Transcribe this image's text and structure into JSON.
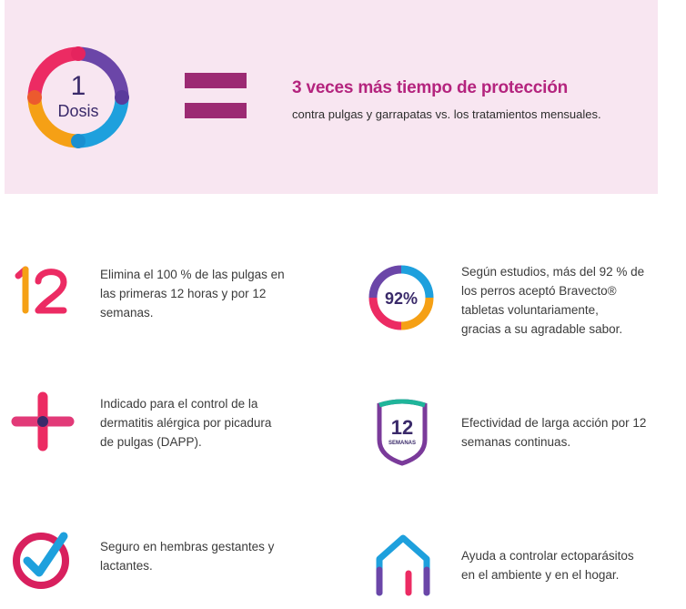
{
  "hero": {
    "dose_number": "1",
    "dose_label": "Dosis",
    "title": "3 veces más tiempo de protección",
    "subtitle": "contra pulgas y garrapatas vs. los tratamientos mensuales.",
    "background_color": "#f8e6f1",
    "accent_color": "#b4247e"
  },
  "features": [
    {
      "id": "fleas-12h",
      "icon": "number-12-icon",
      "icon_text": "12",
      "lines": [
        "Elimina el 100 % de las pulgas en",
        "las primeras 12 horas y por 12",
        "semanas."
      ]
    },
    {
      "id": "acceptance",
      "icon": "percent-ring-icon",
      "icon_text": "92%",
      "lines": [
        "Según estudios, más del 92 % de",
        "los perros aceptó Bravecto®",
        "tabletas voluntariamente,",
        "gracias a su agradable sabor."
      ]
    },
    {
      "id": "dapp",
      "icon": "medical-cross-icon",
      "lines": [
        "Indicado para el control de la",
        "dermatitis alérgica por picadura",
        "de pulgas (DAPP)."
      ]
    },
    {
      "id": "long-action",
      "icon": "shield-12-weeks-icon",
      "icon_text": "12",
      "icon_subtext": "SEMANAS",
      "lines": [
        "Efectividad de larga acción por 12",
        "semanas continuas."
      ]
    },
    {
      "id": "safe",
      "icon": "checkmark-circle-icon",
      "lines": [
        "Seguro en hembras gestantes y",
        "lactantes."
      ]
    },
    {
      "id": "home",
      "icon": "house-icon",
      "lines": [
        "Ayuda a controlar ectoparásitos",
        "en el ambiente y en el hogar."
      ]
    }
  ]
}
